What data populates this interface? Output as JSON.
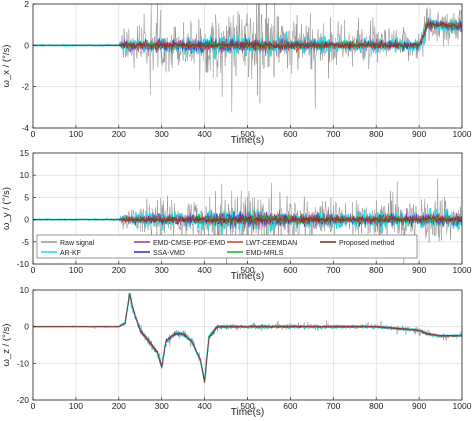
{
  "figure": {
    "background": "#ffffff",
    "axis_color": "#222222",
    "grid_color": "#d6d6d6"
  },
  "chart_data": [
    {
      "type": "line",
      "ylabel": "ω_x / (°/s)",
      "xlabel": "Time(s)",
      "xlim": [
        0,
        1000
      ],
      "ylim": [
        -4,
        2
      ],
      "xticks": [
        "0",
        "100",
        "200",
        "300",
        "400",
        "500",
        "600",
        "700",
        "800",
        "900",
        "1000"
      ],
      "yticks": [
        "-4",
        "-2",
        "0",
        "2"
      ],
      "grid": true,
      "signal_envelope": {
        "x": [
          0,
          100,
          200,
          210,
          250,
          300,
          350,
          400,
          450,
          500,
          520,
          540,
          560,
          600,
          650,
          700,
          750,
          800,
          850,
          900,
          920,
          950,
          1000
        ],
        "raw_amplitude": [
          0.05,
          0.05,
          0.06,
          1.2,
          1.1,
          1.2,
          1.2,
          1.5,
          1.7,
          2.0,
          3.4,
          2.6,
          2.1,
          1.6,
          1.4,
          1.2,
          1.1,
          1.1,
          0.8,
          0.8,
          1.3,
          1.1,
          1.0
        ],
        "filtered_amplitude": [
          0.02,
          0.02,
          0.03,
          0.35,
          0.35,
          0.4,
          0.4,
          0.45,
          0.45,
          0.45,
          0.5,
          0.45,
          0.45,
          0.4,
          0.4,
          0.35,
          0.35,
          0.35,
          0.3,
          0.3,
          0.4,
          0.35,
          0.35
        ],
        "offset": [
          0,
          0,
          0,
          0,
          0,
          0,
          0,
          0,
          0,
          0,
          0,
          0,
          0,
          0,
          0,
          0,
          0,
          0,
          0,
          0,
          1.0,
          1.0,
          0.9
        ]
      }
    },
    {
      "type": "line",
      "ylabel": "ω_y / (°/s)",
      "xlabel": "Time(s)",
      "xlim": [
        0,
        1000
      ],
      "ylim": [
        -10,
        15
      ],
      "xticks": [
        "0",
        "100",
        "200",
        "300",
        "400",
        "500",
        "600",
        "700",
        "800",
        "900",
        "1000"
      ],
      "yticks": [
        "-10",
        "-5",
        "0",
        "5",
        "10",
        "15"
      ],
      "grid": true,
      "legend": {
        "placement": "bottom",
        "entries": [
          {
            "label": "Raw signal",
            "color": "#9a9a9a"
          },
          {
            "label": "EMD-CMSE-PDF-EMD",
            "color": "#b03a9a"
          },
          {
            "label": "LWT-CEEMDAN",
            "color": "#d24a2a"
          },
          {
            "label": "Proposed method",
            "color": "#8b3030"
          },
          {
            "label": "AR-KF",
            "color": "#22e0e0"
          },
          {
            "label": "SSA-VMD",
            "color": "#2a3ad8"
          },
          {
            "label": "EMD-MRLS",
            "color": "#2ab04a"
          }
        ]
      },
      "signal_envelope": {
        "x": [
          0,
          100,
          200,
          210,
          250,
          300,
          350,
          400,
          450,
          500,
          550,
          600,
          650,
          700,
          750,
          800,
          850,
          900,
          950,
          1000
        ],
        "raw_amplitude": [
          0.3,
          0.3,
          0.3,
          2.0,
          4.0,
          5.0,
          4.5,
          5.5,
          7.0,
          9.0,
          6.0,
          7.0,
          6.0,
          4.5,
          4.0,
          5.0,
          6.0,
          4.5,
          7.0,
          4.0
        ],
        "filtered_amplitude": [
          0.1,
          0.1,
          0.1,
          1.0,
          1.5,
          1.8,
          1.8,
          2.0,
          2.2,
          2.5,
          2.2,
          2.2,
          2.0,
          1.8,
          1.6,
          1.8,
          2.0,
          1.8,
          2.2,
          1.6
        ],
        "offset": [
          0,
          0,
          0,
          0,
          0,
          0,
          0,
          0,
          0,
          0,
          0,
          0,
          0,
          0,
          0,
          0,
          0,
          0,
          0,
          0
        ]
      }
    },
    {
      "type": "line",
      "ylabel": "ω_z / (°/s)",
      "xlabel": "Time(s)",
      "xlim": [
        0,
        1000
      ],
      "ylim": [
        -20,
        10
      ],
      "xticks": [
        "0",
        "100",
        "200",
        "300",
        "400",
        "500",
        "600",
        "700",
        "800",
        "900",
        "1000"
      ],
      "yticks": [
        "-20",
        "-10",
        "0",
        "10"
      ],
      "grid": true,
      "signal_envelope": {
        "x": [
          0,
          100,
          200,
          215,
          225,
          235,
          250,
          270,
          290,
          300,
          310,
          330,
          350,
          370,
          390,
          400,
          410,
          430,
          460,
          500,
          550,
          600,
          700,
          800,
          900,
          920,
          950,
          1000
        ],
        "raw_amplitude": [
          0.2,
          0.2,
          0.3,
          0.8,
          1.5,
          1.5,
          1.5,
          1.5,
          1.5,
          1.5,
          1.5,
          1.5,
          1.2,
          1.2,
          1.2,
          1.5,
          1.5,
          1.2,
          1.0,
          1.0,
          1.0,
          1.0,
          0.8,
          0.8,
          0.8,
          1.0,
          0.8,
          0.8
        ],
        "filtered_amplitude": [
          0.05,
          0.05,
          0.1,
          0.4,
          0.8,
          0.8,
          0.8,
          0.8,
          0.8,
          0.8,
          0.8,
          0.7,
          0.6,
          0.6,
          0.6,
          0.8,
          0.8,
          0.6,
          0.5,
          0.5,
          0.5,
          0.5,
          0.4,
          0.4,
          0.4,
          0.5,
          0.4,
          0.4
        ],
        "offset": [
          0,
          0,
          0,
          1.0,
          9.0,
          4.0,
          -1.0,
          -4.0,
          -7.0,
          -11.0,
          -4.0,
          -2.0,
          -2.0,
          -4.0,
          -9.0,
          -15.0,
          -3.0,
          0.0,
          0.0,
          0.0,
          0.0,
          0.0,
          0.0,
          0.0,
          -1.0,
          -2.0,
          -2.5,
          -2.5
        ]
      }
    }
  ]
}
